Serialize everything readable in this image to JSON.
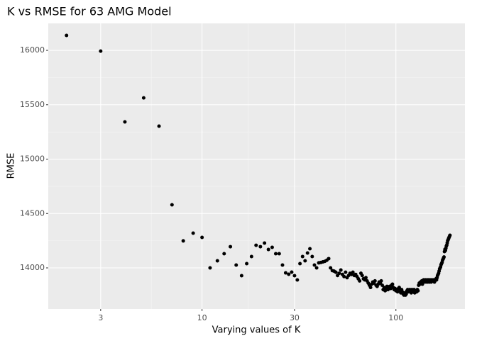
{
  "chart_data": {
    "type": "scatter",
    "title": "K vs RMSE for 63 AMG Model",
    "x_label": "Varying values of K",
    "y_label": "RMSE",
    "log_x": true,
    "grid": true,
    "color": "#000000",
    "xlim": [
      1.61,
      227
    ],
    "xticks": [
      3,
      10,
      30,
      100
    ],
    "ylim": [
      13622,
      16248
    ],
    "yticks": [
      14000,
      14500,
      15000,
      15500,
      16000
    ],
    "x": [
      2,
      3,
      4,
      5,
      6,
      7,
      8,
      9,
      10,
      11,
      12,
      13,
      14,
      15,
      16,
      17,
      18,
      19,
      20,
      21,
      22,
      23,
      24,
      25,
      26,
      27,
      28,
      29,
      30,
      31,
      32,
      33,
      34,
      35,
      36,
      37,
      38,
      39,
      40,
      41,
      42,
      43,
      44,
      45,
      46,
      47,
      48,
      49,
      50,
      51,
      52,
      53,
      54,
      55,
      56,
      57,
      58,
      59,
      60,
      61,
      62,
      63,
      64,
      65,
      66,
      67,
      68,
      69,
      70,
      71,
      72,
      73,
      74,
      75,
      76,
      77,
      78,
      79,
      80,
      81,
      82,
      83,
      84,
      85,
      86,
      87,
      88,
      89,
      90,
      91,
      92,
      93,
      94,
      95,
      96,
      97,
      98,
      99,
      100,
      101,
      102,
      103,
      104,
      105,
      106,
      107,
      108,
      109,
      110,
      111,
      112,
      113,
      114,
      115,
      116,
      117,
      118,
      119,
      120,
      121,
      122,
      123,
      124,
      125,
      126,
      127,
      128,
      129,
      130,
      131,
      132,
      133,
      134,
      135,
      136,
      137,
      138,
      139,
      140,
      141,
      142,
      143,
      144,
      145,
      146,
      147,
      148,
      149,
      150,
      151,
      152,
      153,
      154,
      155,
      156,
      157,
      158,
      159,
      160,
      161,
      162,
      163,
      164,
      165,
      166,
      167,
      168,
      169,
      170,
      171,
      172,
      173,
      174,
      175,
      176,
      177,
      178,
      179,
      180,
      181,
      182,
      183,
      184,
      185,
      186,
      187,
      188,
      189,
      190
    ],
    "values": [
      16137,
      15993,
      15342,
      15563,
      15303,
      14580,
      14248,
      14319,
      14280,
      14000,
      14065,
      14130,
      14195,
      14026,
      13928,
      14039,
      14104,
      14208,
      14195,
      14228,
      14169,
      14189,
      14130,
      14130,
      14026,
      13954,
      13941,
      13961,
      13928,
      13889,
      14039,
      14104,
      14065,
      14137,
      14176,
      14104,
      14026,
      14000,
      14046,
      14050,
      14055,
      14060,
      14070,
      14085,
      14000,
      13975,
      13970,
      13960,
      13930,
      13950,
      13980,
      13940,
      13920,
      13960,
      13910,
      13930,
      13950,
      13940,
      13960,
      13930,
      13940,
      13920,
      13900,
      13880,
      13950,
      13930,
      13900,
      13890,
      13910,
      13880,
      13860,
      13840,
      13820,
      13850,
      13870,
      13860,
      13880,
      13840,
      13830,
      13850,
      13870,
      13860,
      13880,
      13840,
      13800,
      13820,
      13790,
      13810,
      13830,
      13800,
      13820,
      13830,
      13810,
      13840,
      13850,
      13820,
      13800,
      13810,
      13790,
      13800,
      13780,
      13810,
      13820,
      13790,
      13770,
      13800,
      13780,
      13760,
      13750,
      13770,
      13750,
      13760,
      13790,
      13800,
      13780,
      13790,
      13800,
      13780,
      13770,
      13800,
      13790,
      13780,
      13800,
      13770,
      13790,
      13790,
      13780,
      13800,
      13790,
      13840,
      13860,
      13850,
      13870,
      13860,
      13880,
      13850,
      13870,
      13890,
      13870,
      13880,
      13890,
      13870,
      13880,
      13890,
      13870,
      13890,
      13880,
      13870,
      13890,
      13880,
      13870,
      13890,
      13880,
      13880,
      13890,
      13880,
      13870,
      13880,
      13890,
      13900,
      13890,
      13910,
      13930,
      13940,
      13950,
      13970,
      13990,
      14000,
      14010,
      14030,
      14040,
      14050,
      14070,
      14080,
      14090,
      14100,
      14150,
      14170,
      14160,
      14180,
      14200,
      14210,
      14230,
      14250,
      14260,
      14270,
      14280,
      14290,
      14300
    ]
  }
}
